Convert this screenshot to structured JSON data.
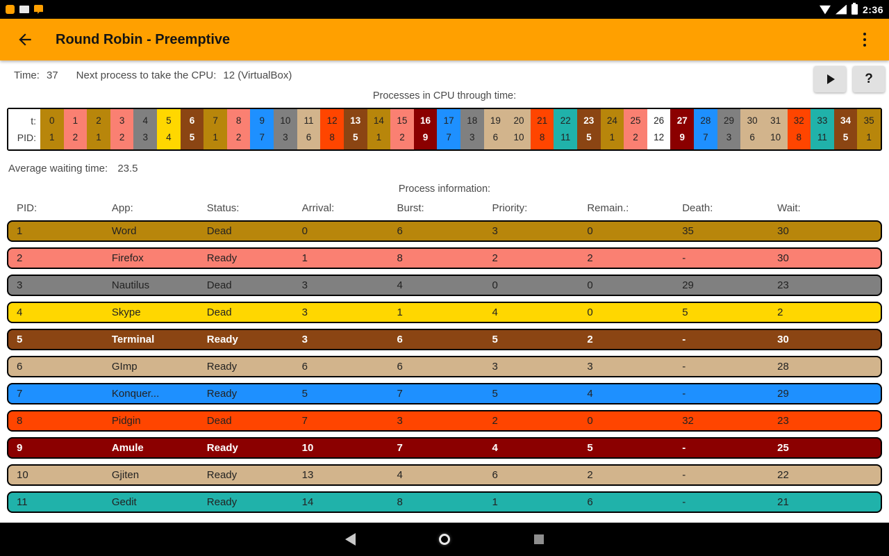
{
  "status_bar": {
    "time": "2:36",
    "left_icons": [
      "notification-icon-1",
      "notification-icon-2",
      "notification-icon-3"
    ],
    "right_icons": [
      "wifi-icon",
      "cellular-signal-icon",
      "battery-icon"
    ]
  },
  "app_bar": {
    "title": "Round Robin - Preemptive",
    "color": "#FFA000"
  },
  "toolbar": {
    "time_label": "Time:",
    "time_value": "37",
    "next_label": "Next process to take the CPU:",
    "next_value": "12 (VirtualBox)",
    "help_label": "?"
  },
  "timeline": {
    "heading": "Processes in CPU through time:",
    "t_label": "t:",
    "pid_label": "PID:",
    "cells": [
      {
        "t": "0",
        "pid": "1"
      },
      {
        "t": "1",
        "pid": "2"
      },
      {
        "t": "2",
        "pid": "1"
      },
      {
        "t": "3",
        "pid": "2"
      },
      {
        "t": "4",
        "pid": "3"
      },
      {
        "t": "5",
        "pid": "4"
      },
      {
        "t": "6",
        "pid": "5"
      },
      {
        "t": "7",
        "pid": "1"
      },
      {
        "t": "8",
        "pid": "2"
      },
      {
        "t": "9",
        "pid": "7"
      },
      {
        "t": "10",
        "pid": "3"
      },
      {
        "t": "11",
        "pid": "6"
      },
      {
        "t": "12",
        "pid": "8"
      },
      {
        "t": "13",
        "pid": "5"
      },
      {
        "t": "14",
        "pid": "1"
      },
      {
        "t": "15",
        "pid": "2"
      },
      {
        "t": "16",
        "pid": "9"
      },
      {
        "t": "17",
        "pid": "7"
      },
      {
        "t": "18",
        "pid": "3"
      },
      {
        "t": "19",
        "pid": "6"
      },
      {
        "t": "20",
        "pid": "10"
      },
      {
        "t": "21",
        "pid": "8"
      },
      {
        "t": "22",
        "pid": "11"
      },
      {
        "t": "23",
        "pid": "5"
      },
      {
        "t": "24",
        "pid": "1"
      },
      {
        "t": "25",
        "pid": "2"
      },
      {
        "t": "26",
        "pid": "12"
      },
      {
        "t": "27",
        "pid": "9"
      },
      {
        "t": "28",
        "pid": "7"
      },
      {
        "t": "29",
        "pid": "3"
      },
      {
        "t": "30",
        "pid": "6"
      },
      {
        "t": "31",
        "pid": "10"
      },
      {
        "t": "32",
        "pid": "8"
      },
      {
        "t": "33",
        "pid": "11"
      },
      {
        "t": "34",
        "pid": "5"
      },
      {
        "t": "35",
        "pid": "1"
      }
    ]
  },
  "average_wait": {
    "label": "Average waiting time:",
    "value": "23.5"
  },
  "process_table": {
    "heading": "Process information:",
    "headers": [
      "PID:",
      "App:",
      "Status:",
      "Arrival:",
      "Burst:",
      "Priority:",
      "Remain.:",
      "Death:",
      "Wait:"
    ],
    "rows": [
      {
        "pid": "1",
        "app": "Word",
        "status": "Dead",
        "arrival": "0",
        "burst": "6",
        "priority": "3",
        "remain": "0",
        "death": "35",
        "wait": "30"
      },
      {
        "pid": "2",
        "app": "Firefox",
        "status": "Ready",
        "arrival": "1",
        "burst": "8",
        "priority": "2",
        "remain": "2",
        "death": "-",
        "wait": "30"
      },
      {
        "pid": "3",
        "app": "Nautilus",
        "status": "Dead",
        "arrival": "3",
        "burst": "4",
        "priority": "0",
        "remain": "0",
        "death": "29",
        "wait": "23"
      },
      {
        "pid": "4",
        "app": "Skype",
        "status": "Dead",
        "arrival": "3",
        "burst": "1",
        "priority": "4",
        "remain": "0",
        "death": "5",
        "wait": "2"
      },
      {
        "pid": "5",
        "app": "Terminal",
        "status": "Ready",
        "arrival": "3",
        "burst": "6",
        "priority": "5",
        "remain": "2",
        "death": "-",
        "wait": "30"
      },
      {
        "pid": "6",
        "app": "GImp",
        "status": "Ready",
        "arrival": "6",
        "burst": "6",
        "priority": "3",
        "remain": "3",
        "death": "-",
        "wait": "28"
      },
      {
        "pid": "7",
        "app": "Konquer...",
        "status": "Ready",
        "arrival": "5",
        "burst": "7",
        "priority": "5",
        "remain": "4",
        "death": "-",
        "wait": "29"
      },
      {
        "pid": "8",
        "app": "Pidgin",
        "status": "Dead",
        "arrival": "7",
        "burst": "3",
        "priority": "2",
        "remain": "0",
        "death": "32",
        "wait": "23"
      },
      {
        "pid": "9",
        "app": "Amule",
        "status": "Ready",
        "arrival": "10",
        "burst": "7",
        "priority": "4",
        "remain": "5",
        "death": "-",
        "wait": "25"
      },
      {
        "pid": "10",
        "app": "Gjiten",
        "status": "Ready",
        "arrival": "13",
        "burst": "4",
        "priority": "6",
        "remain": "2",
        "death": "-",
        "wait": "22"
      },
      {
        "pid": "11",
        "app": "Gedit",
        "status": "Ready",
        "arrival": "14",
        "burst": "8",
        "priority": "1",
        "remain": "6",
        "death": "-",
        "wait": "21"
      }
    ]
  },
  "pid_colors": {
    "1": {
      "bg": "#B8860B",
      "fg": "#222222",
      "bold": false
    },
    "2": {
      "bg": "#FA8072",
      "fg": "#222222",
      "bold": false
    },
    "3": {
      "bg": "#808080",
      "fg": "#222222",
      "bold": false
    },
    "4": {
      "bg": "#FFD700",
      "fg": "#222222",
      "bold": false
    },
    "5": {
      "bg": "#8B4513",
      "fg": "#FFFFFF",
      "bold": true
    },
    "6": {
      "bg": "#D2B48C",
      "fg": "#222222",
      "bold": false
    },
    "7": {
      "bg": "#1E90FF",
      "fg": "#222222",
      "bold": false
    },
    "8": {
      "bg": "#FF4500",
      "fg": "#222222",
      "bold": false
    },
    "9": {
      "bg": "#8B0000",
      "fg": "#FFFFFF",
      "bold": true
    },
    "10": {
      "bg": "#D2B48C",
      "fg": "#222222",
      "bold": false
    },
    "11": {
      "bg": "#20B2AA",
      "fg": "#222222",
      "bold": false
    },
    "12": {
      "bg": "#FFFFFF",
      "fg": "#222222",
      "bold": false
    }
  },
  "nav_bar": {
    "icons": [
      "back-icon",
      "home-icon",
      "recents-icon"
    ]
  }
}
